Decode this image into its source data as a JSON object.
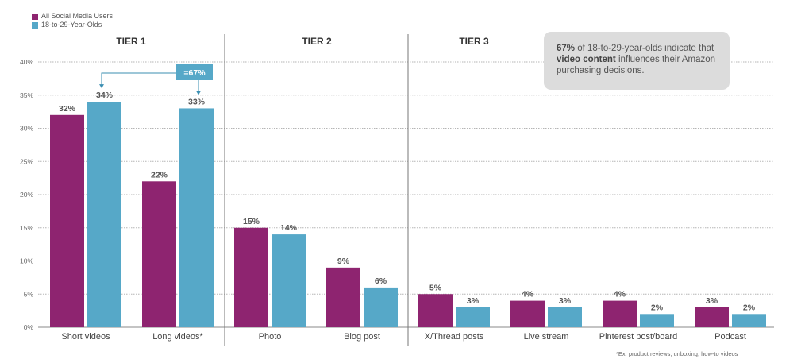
{
  "chart_data": {
    "type": "bar",
    "categories": [
      "Short videos",
      "Long videos*",
      "Photo",
      "Blog post",
      "X/Thread posts",
      "Live stream",
      "Pinterest post/board",
      "Podcast"
    ],
    "series": [
      {
        "name": "All Social Media Users",
        "color": "#8e2470",
        "values": [
          32,
          22,
          15,
          9,
          5,
          4,
          4,
          3
        ]
      },
      {
        "name": "18-to-29-Year-Olds",
        "color": "#56a8c8",
        "values": [
          34,
          33,
          14,
          6,
          3,
          3,
          2,
          2
        ]
      }
    ],
    "ylim": [
      0,
      40
    ],
    "yticks": [
      "0%",
      "5%",
      "10%",
      "15%",
      "20%",
      "25%",
      "30%",
      "35%",
      "40%"
    ],
    "tiers": [
      "TIER 1",
      "TIER 2",
      "TIER 3"
    ],
    "annotation": "=67%",
    "grid": true,
    "legend_position": "top-left"
  },
  "callout": {
    "bold1": "67%",
    "text1": " of 18-to-29-year-olds indicate that ",
    "bold2": "video content",
    "text2": " influences their Amazon purchasing decisions."
  },
  "footnote": "*Ex: product reviews, unboxing, how-to videos"
}
